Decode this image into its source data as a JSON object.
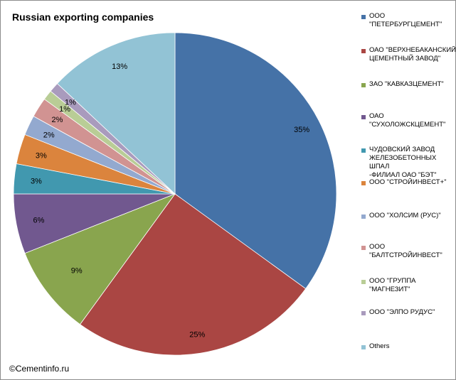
{
  "chart_data": {
    "type": "pie",
    "title": "Russian exporting companies",
    "start_angle_deg": 0,
    "direction": "clockwise",
    "slices": [
      {
        "label": "ООО \"ПЕТЕРБУРГЦЕМЕНТ\"",
        "value": 35,
        "value_label": "35%",
        "color": "#4572a7"
      },
      {
        "label": "ОАО \"ВЕРХНЕБАКАНСКИЙ ЦЕМЕНТНЫЙ ЗАВОД\"",
        "value": 25,
        "value_label": "25%",
        "color": "#aa4643"
      },
      {
        "label": "ЗАО \"КАВКАЗЦЕМЕНТ\"",
        "value": 9,
        "value_label": "9%",
        "color": "#89a54e"
      },
      {
        "label": "ОАО \"СУХОЛОЖСКЦЕМЕНТ\"",
        "value": 6,
        "value_label": "6%",
        "color": "#71588f"
      },
      {
        "label": "ЧУДОВСКИЙ ЗАВОД ЖЕЛЕЗОБЕТОННЫХ ШПАЛ -ФИЛИАЛ ОАО \"БЭТ\"",
        "value": 3,
        "value_label": "3%",
        "color": "#4198af"
      },
      {
        "label": "ООО \"СТРОЙИНВЕСТ+\"",
        "value": 3,
        "value_label": "3%",
        "color": "#db843d"
      },
      {
        "label": "ООО \"ХОЛСИМ (РУС)\"",
        "value": 2,
        "value_label": "2%",
        "color": "#93a9cf"
      },
      {
        "label": "ООО \"БАЛТСТРОЙИНВЕСТ\"",
        "value": 2,
        "value_label": "2%",
        "color": "#d19392"
      },
      {
        "label": "ООО \"ГРУППА \"МАГНЕЗИТ\"",
        "value": 1,
        "value_label": "1%",
        "color": "#b9cd96"
      },
      {
        "label": "ООО \"ЭЛПО РУДУС\"",
        "value": 1,
        "value_label": "1%",
        "color": "#a99bbd"
      },
      {
        "label": "Others",
        "value": 13,
        "value_label": "13%",
        "color": "#92c3d5"
      }
    ],
    "legend_position": "right"
  },
  "legend_lines": [
    "ООО \"ПЕТЕРБУРГЦЕМЕНТ\"",
    "ОАО \"ВЕРХНЕБАКАНСКИЙ\nЦЕМЕНТНЫЙ ЗАВОД\"",
    "ЗАО \"КАВКАЗЦЕМЕНТ\"",
    "ОАО\n\"СУХОЛОЖСКЦЕМЕНТ\"",
    "ЧУДОВСКИЙ ЗАВОД\nЖЕЛЕЗОБЕТОННЫХ ШПАЛ\n-ФИЛИАЛ ОАО \"БЭТ\"",
    "ООО \"СТРОЙИНВЕСТ+\"",
    "ООО \"ХОЛСИМ (РУС)\"",
    "ООО\n\"БАЛТСТРОЙИНВЕСТ\"",
    "ООО \"ГРУППА\n\"МАГНЕЗИТ\"",
    "ООО \"ЭЛПО РУДУС\"",
    "Others"
  ],
  "copyright": "©Cementinfo.ru"
}
